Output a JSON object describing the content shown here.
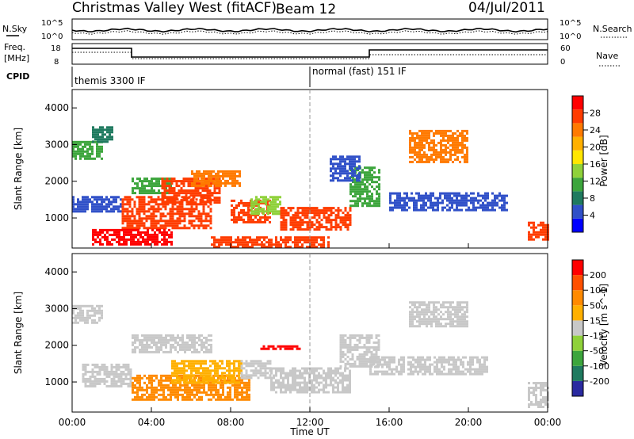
{
  "header": {
    "station": "Christmas Valley West (fitACF)",
    "beam": "Beam 12",
    "date": "04/Jul/2011"
  },
  "noise_panel": {
    "left_label": "N.Sky",
    "left_ticks": [
      "10^5",
      "10^0"
    ],
    "right_ticks": [
      "10^5",
      "10^0"
    ],
    "right_label": "N.Search"
  },
  "freq_panel": {
    "label_line1": "Freq.",
    "label_line2": "[MHz]",
    "left_ticks": [
      "18",
      "8"
    ],
    "right_ticks": [
      "60",
      "0"
    ],
    "right_label": "Nave"
  },
  "cpid": {
    "label": "CPID",
    "modes": [
      "themis 3300 IF",
      "normal (fast) 151 IF"
    ]
  },
  "x_axis": {
    "title": "Time UT",
    "ticks": [
      "00:00",
      "04:00",
      "08:00",
      "12:00",
      "16:00",
      "20:00",
      "00:00"
    ]
  },
  "chart_data": [
    {
      "type": "heatmap",
      "name": "Power",
      "ylabel": "Slant Range [km]",
      "y_ticks": [
        "1000",
        "2000",
        "3000",
        "4000"
      ],
      "ylim": [
        180,
        4500
      ],
      "xlim_hours": [
        0,
        24
      ],
      "colorbar": {
        "title": "Power [dB]",
        "tick_labels": [
          "4",
          "8",
          "12",
          "16",
          "20",
          "24",
          "28"
        ],
        "colors": [
          "#0000ff",
          "#3050c8",
          "#1f7a5f",
          "#3ca53c",
          "#8fd13a",
          "#ffe600",
          "#ffb000",
          "#ff7a00",
          "#ff3c00",
          "#ff0000"
        ]
      },
      "regions": [
        {
          "t": [
            0.0,
            1.5
          ],
          "r": [
            2600,
            3100
          ],
          "c": "#3ca53c"
        },
        {
          "t": [
            1.0,
            2.0
          ],
          "r": [
            3100,
            3500
          ],
          "c": "#1f7a5f"
        },
        {
          "t": [
            3.0,
            5.0
          ],
          "r": [
            1700,
            2100
          ],
          "c": "#3ca53c"
        },
        {
          "t": [
            0.0,
            2.5
          ],
          "r": [
            1200,
            1600
          ],
          "c": "#3050c8"
        },
        {
          "t": [
            2.5,
            7.0
          ],
          "r": [
            700,
            1600
          ],
          "c": "#ff3c00"
        },
        {
          "t": [
            4.5,
            7.5
          ],
          "r": [
            1400,
            2100
          ],
          "c": "#ff3c00"
        },
        {
          "t": [
            6.0,
            8.5
          ],
          "r": [
            1900,
            2300
          ],
          "c": "#ff7a00"
        },
        {
          "t": [
            8.0,
            10.0
          ],
          "r": [
            900,
            1500
          ],
          "c": "#ff3c00"
        },
        {
          "t": [
            9.0,
            10.5
          ],
          "r": [
            1100,
            1600
          ],
          "c": "#8fd13a"
        },
        {
          "t": [
            10.5,
            14.0
          ],
          "r": [
            700,
            1300
          ],
          "c": "#ff3c00"
        },
        {
          "t": [
            1.0,
            5.0
          ],
          "r": [
            300,
            700
          ],
          "c": "#ff0000"
        },
        {
          "t": [
            7.0,
            13.0
          ],
          "r": [
            200,
            500
          ],
          "c": "#ff3c00"
        },
        {
          "t": [
            14.0,
            15.5
          ],
          "r": [
            1300,
            2400
          ],
          "c": "#3ca53c"
        },
        {
          "t": [
            13.0,
            14.5
          ],
          "r": [
            2000,
            2700
          ],
          "c": "#3050c8"
        },
        {
          "t": [
            16.0,
            22.0
          ],
          "r": [
            1200,
            1700
          ],
          "c": "#3050c8"
        },
        {
          "t": [
            17.0,
            20.0
          ],
          "r": [
            2500,
            3400
          ],
          "c": "#ff7a00"
        },
        {
          "t": [
            23.0,
            24.0
          ],
          "r": [
            400,
            900
          ],
          "c": "#ff3c00"
        }
      ]
    },
    {
      "type": "heatmap",
      "name": "Velocity",
      "ylabel": "Slant Range [km]",
      "y_ticks": [
        "1000",
        "2000",
        "3000",
        "4000"
      ],
      "ylim": [
        180,
        4500
      ],
      "xlim_hours": [
        0,
        24
      ],
      "colorbar": {
        "title": "Velocity [m s^-1]",
        "tick_labels": [
          "200",
          "100",
          "50",
          "15",
          "-15",
          "-50",
          "-100",
          "-200"
        ],
        "colors": [
          "#2a2aa0",
          "#1f7a5f",
          "#3ca53c",
          "#8fd13a",
          "#c8c8c8",
          "#ffb000",
          "#ff8a00",
          "#ff5000",
          "#ff0000"
        ]
      },
      "regions": [
        {
          "t": [
            0.0,
            1.5
          ],
          "r": [
            2600,
            3100
          ],
          "c": "#c8c8c8"
        },
        {
          "t": [
            3.0,
            7.0
          ],
          "r": [
            1800,
            2300
          ],
          "c": "#c8c8c8"
        },
        {
          "t": [
            0.5,
            3.0
          ],
          "r": [
            900,
            1500
          ],
          "c": "#c8c8c8"
        },
        {
          "t": [
            3.0,
            9.0
          ],
          "r": [
            500,
            1200
          ],
          "c": "#ff8a00"
        },
        {
          "t": [
            5.0,
            8.5
          ],
          "r": [
            1000,
            1600
          ],
          "c": "#ffb000"
        },
        {
          "t": [
            8.5,
            10.0
          ],
          "r": [
            1100,
            1600
          ],
          "c": "#c8c8c8"
        },
        {
          "t": [
            9.5,
            11.5
          ],
          "r": [
            1900,
            2000
          ],
          "c": "#ff0000"
        },
        {
          "t": [
            10.0,
            14.0
          ],
          "r": [
            700,
            1400
          ],
          "c": "#c8c8c8"
        },
        {
          "t": [
            13.5,
            15.5
          ],
          "r": [
            1400,
            2300
          ],
          "c": "#c8c8c8"
        },
        {
          "t": [
            15.0,
            21.0
          ],
          "r": [
            1200,
            1700
          ],
          "c": "#c8c8c8"
        },
        {
          "t": [
            17.0,
            20.0
          ],
          "r": [
            2500,
            3200
          ],
          "c": "#c8c8c8"
        },
        {
          "t": [
            23.0,
            24.0
          ],
          "r": [
            300,
            1000
          ],
          "c": "#c8c8c8"
        }
      ]
    }
  ]
}
